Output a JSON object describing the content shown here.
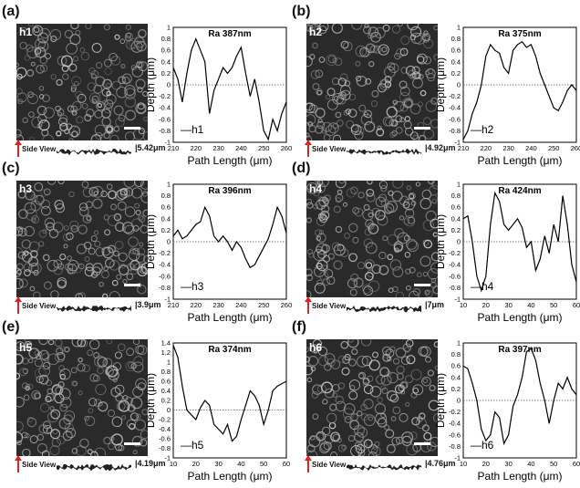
{
  "panels": [
    {
      "label": "(a)",
      "image_label": "h1",
      "side_view_label": "Side View",
      "side_height": "5.42μm",
      "colors": {
        "image": "#2c2c2c"
      }
    },
    {
      "label": "(b)",
      "image_label": "h2",
      "side_view_label": "Side View",
      "side_height": "4.92μm"
    },
    {
      "label": "(c)",
      "image_label": "h3",
      "side_view_label": "Side View",
      "side_height": "3.9μm"
    },
    {
      "label": "(d)",
      "image_label": "h4",
      "side_view_label": "Side View",
      "side_height": "7μm"
    },
    {
      "label": "(e)",
      "image_label": "h5",
      "side_view_label": "Side View",
      "side_height": "4.19μm"
    },
    {
      "label": "(f)",
      "image_label": "h6",
      "side_view_label": "Side View",
      "side_height": "4.76μm"
    }
  ],
  "chart_data": [
    {
      "type": "line",
      "ra_label": "Ra 387nm",
      "xlabel": "Path Length (μm)",
      "ylabel": "Depth (μm)",
      "xlim": [
        210,
        260
      ],
      "ylim": [
        -1,
        1
      ],
      "xticks": [
        210,
        220,
        230,
        240,
        250,
        260
      ],
      "yticks": [
        -1,
        -0.8,
        -0.6,
        -0.4,
        -0.2,
        0,
        0.2,
        0.4,
        0.6,
        0.8,
        1
      ],
      "series": [
        {
          "name": "h1",
          "x": [
            210,
            212,
            214,
            216,
            218,
            220,
            222,
            224,
            226,
            228,
            230,
            232,
            234,
            236,
            238,
            240,
            242,
            244,
            246,
            248,
            250,
            252,
            254,
            256,
            258,
            260
          ],
          "y": [
            0.3,
            0.1,
            -0.3,
            0.2,
            0.6,
            0.8,
            0.6,
            0.4,
            -0.5,
            -0.1,
            0.1,
            0.3,
            0.2,
            0.3,
            0.5,
            0.65,
            0.2,
            -0.2,
            0.1,
            -0.3,
            -0.8,
            -0.95,
            -0.6,
            -0.8,
            -0.5,
            -0.3
          ]
        }
      ]
    },
    {
      "type": "line",
      "ra_label": "Ra 375nm",
      "xlabel": "Path Length (μm)",
      "ylabel": "Depth (μm)",
      "xlim": [
        210,
        260
      ],
      "ylim": [
        -1,
        1
      ],
      "xticks": [
        210,
        220,
        230,
        240,
        250,
        260
      ],
      "yticks": [
        -1,
        -0.8,
        -0.6,
        -0.4,
        -0.2,
        0,
        0.2,
        0.4,
        0.6,
        0.8,
        1
      ],
      "series": [
        {
          "name": "h2",
          "x": [
            210,
            212,
            214,
            216,
            218,
            220,
            222,
            224,
            226,
            228,
            230,
            232,
            234,
            236,
            238,
            240,
            242,
            244,
            246,
            248,
            250,
            252,
            254,
            256,
            258,
            260
          ],
          "y": [
            -0.95,
            -0.8,
            -0.5,
            -0.3,
            0.0,
            0.5,
            0.7,
            0.6,
            0.55,
            0.3,
            0.2,
            0.6,
            0.7,
            0.75,
            0.65,
            0.7,
            0.5,
            0.2,
            0.0,
            -0.2,
            -0.4,
            -0.45,
            -0.3,
            -0.1,
            0.0,
            -0.1
          ]
        }
      ]
    },
    {
      "type": "line",
      "ra_label": "Ra 396nm",
      "xlabel": "Path Length (μm)",
      "ylabel": "Depth (μm)",
      "xlim": [
        210,
        260
      ],
      "ylim": [
        -1,
        1
      ],
      "xticks": [
        210,
        220,
        230,
        240,
        250,
        260
      ],
      "yticks": [
        -1,
        -0.8,
        -0.6,
        -0.4,
        -0.2,
        0,
        0.2,
        0.4,
        0.6,
        0.8,
        1
      ],
      "series": [
        {
          "name": "h3",
          "x": [
            210,
            212,
            214,
            216,
            218,
            220,
            222,
            224,
            226,
            228,
            230,
            232,
            234,
            236,
            238,
            240,
            242,
            244,
            246,
            248,
            250,
            252,
            254,
            256,
            258,
            260
          ],
          "y": [
            0.1,
            0.2,
            0.05,
            0.1,
            0.2,
            0.3,
            0.35,
            0.6,
            0.45,
            0.1,
            0.0,
            0.1,
            0.0,
            -0.15,
            0.0,
            -0.1,
            -0.3,
            -0.45,
            -0.4,
            -0.25,
            -0.1,
            0.05,
            0.3,
            0.6,
            0.45,
            0.15
          ]
        }
      ]
    },
    {
      "type": "line",
      "ra_label": "Ra 424nm",
      "xlabel": "Path Length (μm)",
      "ylabel": "Depth (μm)",
      "xlim": [
        10,
        60
      ],
      "ylim": [
        -1,
        1
      ],
      "xticks": [
        10,
        20,
        30,
        40,
        50,
        60
      ],
      "yticks": [
        -1,
        -0.8,
        -0.6,
        -0.4,
        -0.2,
        0,
        0.2,
        0.4,
        0.6,
        0.8,
        1
      ],
      "series": [
        {
          "name": "h4",
          "x": [
            10,
            12,
            14,
            16,
            18,
            20,
            22,
            24,
            26,
            28,
            30,
            32,
            34,
            36,
            38,
            40,
            42,
            44,
            46,
            48,
            50,
            52,
            54,
            56,
            58,
            60
          ],
          "y": [
            0.4,
            0.45,
            0.0,
            -0.6,
            -0.85,
            -0.6,
            0.3,
            0.85,
            0.7,
            0.3,
            0.2,
            0.3,
            0.4,
            0.25,
            -0.1,
            0.0,
            -0.5,
            -0.3,
            0.1,
            -0.2,
            0.3,
            0.0,
            0.8,
            0.3,
            -0.4,
            -0.7
          ]
        }
      ]
    },
    {
      "type": "line",
      "ra_label": "Ra 374nm",
      "xlabel": "Path Length (μm)",
      "ylabel": "Depth (μm)",
      "xlim": [
        10,
        60
      ],
      "ylim": [
        -1,
        1.4
      ],
      "xticks": [
        10,
        20,
        30,
        40,
        50,
        60
      ],
      "yticks": [
        -1,
        -0.8,
        -0.6,
        -0.4,
        -0.2,
        0,
        0.2,
        0.4,
        0.6,
        0.8,
        1,
        1.2,
        1.4
      ],
      "series": [
        {
          "name": "h5",
          "x": [
            10,
            12,
            14,
            16,
            18,
            20,
            22,
            24,
            26,
            28,
            30,
            32,
            34,
            36,
            38,
            40,
            42,
            44,
            46,
            48,
            50,
            52,
            54,
            56,
            58,
            60
          ],
          "y": [
            1.35,
            1.1,
            0.5,
            0.0,
            -0.1,
            -0.2,
            0.05,
            0.2,
            0.1,
            -0.3,
            -0.4,
            -0.5,
            -0.3,
            -0.65,
            -0.55,
            -0.2,
            0.1,
            0.4,
            0.3,
            0.1,
            -0.3,
            0.0,
            0.4,
            0.5,
            0.55,
            0.6
          ]
        }
      ]
    },
    {
      "type": "line",
      "ra_label": "Ra 397nm",
      "xlabel": "Path Length (μm)",
      "ylabel": "Depth (μm)",
      "xlim": [
        10,
        60
      ],
      "ylim": [
        -1,
        1
      ],
      "xticks": [
        10,
        20,
        30,
        40,
        50,
        60
      ],
      "yticks": [
        -1,
        -0.8,
        -0.6,
        -0.4,
        -0.2,
        0,
        0.2,
        0.4,
        0.6,
        0.8,
        1
      ],
      "series": [
        {
          "name": "h6",
          "x": [
            10,
            12,
            14,
            16,
            18,
            20,
            22,
            24,
            26,
            28,
            30,
            32,
            34,
            36,
            38,
            40,
            42,
            44,
            46,
            48,
            50,
            52,
            54,
            56,
            58,
            60
          ],
          "y": [
            0.6,
            0.55,
            0.3,
            0.0,
            -0.5,
            -0.7,
            -0.6,
            -0.2,
            -0.3,
            -0.75,
            -0.6,
            -0.1,
            0.1,
            0.4,
            0.85,
            0.9,
            0.7,
            0.3,
            0.0,
            -0.4,
            0.0,
            0.3,
            0.2,
            0.4,
            0.2,
            0.1
          ]
        }
      ]
    }
  ]
}
